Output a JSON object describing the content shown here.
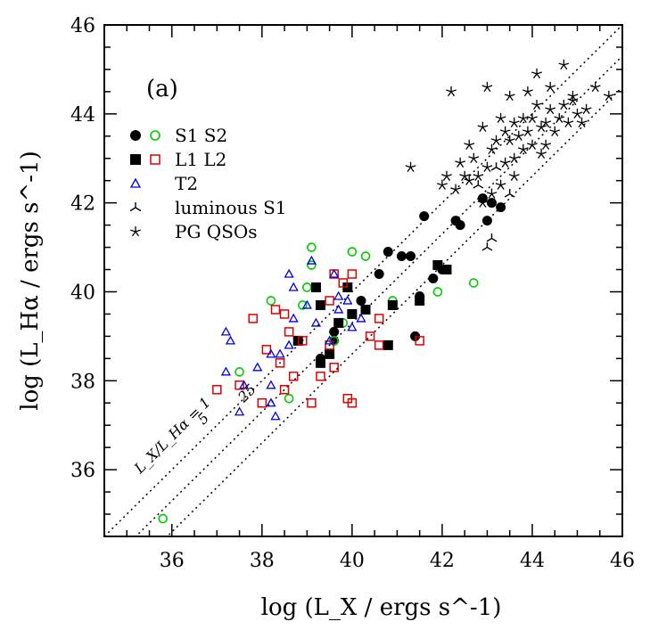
{
  "chart_data": {
    "type": "scatter",
    "panel_label": "(a)",
    "xlabel": "log (L_X / ergs s^-1)",
    "ylabel": "log (L_Hα / ergs s^-1)",
    "xlim": [
      34.5,
      46
    ],
    "ylim": [
      34.5,
      46
    ],
    "xticks": [
      36,
      38,
      40,
      42,
      44,
      46
    ],
    "yticks": [
      36,
      38,
      40,
      42,
      44,
      46
    ],
    "grid": false,
    "legend_position": "upper-left",
    "reference_lines": [
      {
        "ratio": 1,
        "label": "L_X/L_Hα = 1",
        "offset": 0
      },
      {
        "ratio": 5,
        "label": "5",
        "offset": 0.699
      },
      {
        "ratio": 25,
        "label": "25",
        "offset": 1.398
      }
    ],
    "series": [
      {
        "name": "S1",
        "marker": "filled-circle",
        "color": "#000000",
        "points": [
          [
            39.6,
            39.1
          ],
          [
            40.2,
            39.8
          ],
          [
            40.6,
            40.4
          ],
          [
            40.8,
            40.9
          ],
          [
            41.1,
            40.8
          ],
          [
            41.3,
            40.8
          ],
          [
            41.6,
            41.7
          ],
          [
            41.8,
            40.3
          ],
          [
            42.0,
            40.5
          ],
          [
            42.3,
            41.6
          ],
          [
            42.4,
            41.5
          ],
          [
            42.9,
            42.1
          ],
          [
            43.0,
            41.6
          ],
          [
            43.1,
            42.0
          ],
          [
            43.3,
            41.9
          ],
          [
            39.3,
            38.5
          ],
          [
            39.6,
            38.9
          ],
          [
            41.4,
            39.0
          ],
          [
            41.5,
            39.9
          ]
        ]
      },
      {
        "name": "S2",
        "marker": "open-circle",
        "color": "#00cc00",
        "points": [
          [
            39.1,
            41.0
          ],
          [
            39.1,
            40.6
          ],
          [
            40.0,
            40.9
          ],
          [
            40.3,
            40.8
          ],
          [
            39.0,
            40.1
          ],
          [
            38.2,
            39.8
          ],
          [
            38.9,
            39.7
          ],
          [
            41.9,
            40.0
          ],
          [
            42.7,
            40.2
          ],
          [
            40.9,
            39.8
          ],
          [
            39.6,
            38.9
          ],
          [
            39.8,
            39.3
          ],
          [
            38.6,
            37.6
          ],
          [
            37.5,
            38.2
          ],
          [
            35.8,
            34.9
          ]
        ]
      },
      {
        "name": "L1",
        "marker": "filled-square",
        "color": "#000000",
        "points": [
          [
            39.2,
            40.1
          ],
          [
            39.3,
            39.7
          ],
          [
            39.7,
            39.3
          ],
          [
            39.9,
            40.1
          ],
          [
            40.0,
            39.5
          ],
          [
            40.3,
            39.6
          ],
          [
            40.8,
            38.8
          ],
          [
            40.9,
            39.7
          ],
          [
            41.5,
            39.8
          ],
          [
            41.9,
            40.6
          ],
          [
            42.1,
            40.5
          ],
          [
            38.8,
            38.9
          ],
          [
            39.3,
            38.4
          ],
          [
            39.5,
            38.6
          ]
        ]
      },
      {
        "name": "L2",
        "marker": "open-square",
        "color": "#e00000",
        "points": [
          [
            39.6,
            40.4
          ],
          [
            40.0,
            40.4
          ],
          [
            39.8,
            40.2
          ],
          [
            39.5,
            39.8
          ],
          [
            38.3,
            39.6
          ],
          [
            38.5,
            39.5
          ],
          [
            37.8,
            39.4
          ],
          [
            38.6,
            39.1
          ],
          [
            38.9,
            38.9
          ],
          [
            38.1,
            38.7
          ],
          [
            38.4,
            38.4
          ],
          [
            38.0,
            37.5
          ],
          [
            38.5,
            37.8
          ],
          [
            37.5,
            37.9
          ],
          [
            37.0,
            37.8
          ],
          [
            39.1,
            37.5
          ],
          [
            40.0,
            37.5
          ],
          [
            39.9,
            37.6
          ],
          [
            38.7,
            38.1
          ],
          [
            39.6,
            38.3
          ],
          [
            40.6,
            38.8
          ],
          [
            41.5,
            38.9
          ],
          [
            40.4,
            39.0
          ],
          [
            39.3,
            38.1
          ],
          [
            39.5,
            38.8
          ],
          [
            40.6,
            39.4
          ]
        ]
      },
      {
        "name": "T2",
        "marker": "open-triangle",
        "color": "#0000dd",
        "points": [
          [
            37.2,
            39.1
          ],
          [
            37.3,
            38.9
          ],
          [
            37.2,
            38.2
          ],
          [
            37.6,
            37.9
          ],
          [
            37.5,
            37.3
          ],
          [
            37.9,
            38.3
          ],
          [
            38.2,
            37.9
          ],
          [
            38.2,
            37.5
          ],
          [
            38.4,
            38.6
          ],
          [
            38.6,
            38.8
          ],
          [
            38.7,
            39.4
          ],
          [
            38.6,
            40.4
          ],
          [
            38.7,
            40.1
          ],
          [
            39.0,
            39.7
          ],
          [
            39.2,
            39.3
          ],
          [
            39.6,
            40.4
          ],
          [
            39.7,
            39.9
          ],
          [
            39.9,
            39.8
          ],
          [
            39.7,
            39.6
          ],
          [
            39.5,
            38.9
          ],
          [
            40.0,
            39.2
          ],
          [
            40.2,
            39.4
          ],
          [
            38.3,
            37.2
          ],
          [
            39.1,
            40.7
          ],
          [
            38.2,
            38.6
          ]
        ]
      },
      {
        "name": "luminous S1",
        "marker": "three-prong",
        "color": "#000000",
        "points": [
          [
            43.1,
            41.2
          ],
          [
            43.0,
            41.0
          ],
          [
            43.5,
            42.2
          ],
          [
            43.2,
            42.8
          ],
          [
            42.8,
            42.4
          ]
        ]
      },
      {
        "name": "PG QSOs",
        "marker": "star",
        "color": "#000000",
        "points": [
          [
            42.2,
            44.5
          ],
          [
            43.0,
            44.6
          ],
          [
            43.5,
            44.4
          ],
          [
            43.9,
            44.5
          ],
          [
            44.1,
            44.9
          ],
          [
            44.4,
            44.6
          ],
          [
            44.7,
            45.1
          ],
          [
            44.9,
            44.3
          ],
          [
            45.4,
            44.6
          ],
          [
            45.7,
            44.4
          ],
          [
            42.0,
            42.4
          ],
          [
            42.1,
            42.6
          ],
          [
            42.3,
            42.3
          ],
          [
            42.4,
            42.9
          ],
          [
            42.5,
            42.6
          ],
          [
            42.6,
            43.3
          ],
          [
            42.6,
            42.5
          ],
          [
            42.7,
            43.0
          ],
          [
            42.8,
            42.6
          ],
          [
            42.9,
            43.7
          ],
          [
            43.0,
            42.8
          ],
          [
            43.1,
            43.2
          ],
          [
            43.2,
            43.4
          ],
          [
            43.3,
            43.9
          ],
          [
            43.4,
            43.6
          ],
          [
            43.4,
            42.9
          ],
          [
            43.5,
            43.4
          ],
          [
            43.6,
            43.0
          ],
          [
            43.6,
            43.8
          ],
          [
            43.7,
            43.5
          ],
          [
            43.8,
            43.9
          ],
          [
            43.8,
            43.2
          ],
          [
            43.9,
            43.6
          ],
          [
            44.0,
            43.9
          ],
          [
            44.0,
            43.3
          ],
          [
            44.1,
            44.2
          ],
          [
            44.2,
            43.7
          ],
          [
            44.3,
            43.8
          ],
          [
            44.4,
            44.1
          ],
          [
            44.5,
            43.6
          ],
          [
            44.6,
            43.9
          ],
          [
            44.7,
            44.2
          ],
          [
            44.8,
            43.8
          ],
          [
            44.9,
            44.4
          ],
          [
            45.0,
            44.0
          ],
          [
            45.1,
            43.8
          ],
          [
            45.2,
            44.1
          ],
          [
            44.3,
            43.3
          ],
          [
            43.1,
            42.2
          ],
          [
            42.9,
            42.0
          ],
          [
            41.3,
            42.8
          ],
          [
            43.6,
            42.6
          ],
          [
            44.2,
            43.1
          ],
          [
            43.3,
            42.4
          ]
        ]
      }
    ],
    "legend": [
      {
        "markers": [
          "filled-circle",
          "open-circle"
        ],
        "colors": [
          "#000000",
          "#00cc00"
        ],
        "label": "S1  S2"
      },
      {
        "markers": [
          "filled-square",
          "open-square"
        ],
        "colors": [
          "#000000",
          "#e00000"
        ],
        "label": "L1  L2"
      },
      {
        "markers": [
          "open-triangle"
        ],
        "colors": [
          "#0000dd"
        ],
        "label": "T2"
      },
      {
        "markers": [
          "three-prong"
        ],
        "colors": [
          "#000000"
        ],
        "label": "luminous S1"
      },
      {
        "markers": [
          "star"
        ],
        "colors": [
          "#000000"
        ],
        "label": "PG QSOs"
      }
    ]
  }
}
